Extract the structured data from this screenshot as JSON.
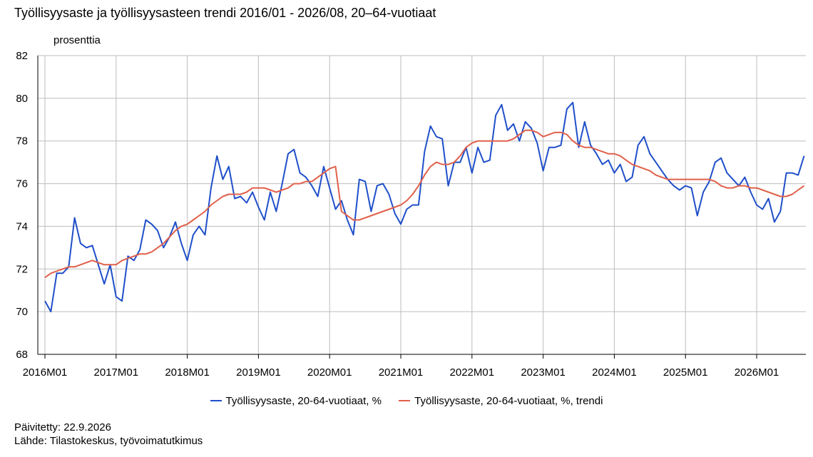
{
  "chart_data": {
    "type": "line",
    "title": "Työllisyysaste ja työllisyysasteen trendi 2016/01 - 2026/08, 20–64-vuotiaat",
    "ylabel": "prosenttia",
    "xlabel": "",
    "ylim": [
      68,
      82
    ],
    "yticks": [
      68,
      70,
      72,
      74,
      76,
      78,
      80,
      82
    ],
    "xticks": [
      "2016M01",
      "2017M01",
      "2018M01",
      "2019M01",
      "2020M01",
      "2021M01",
      "2022M01",
      "2023M01",
      "2024M01",
      "2025M01",
      "2026M01"
    ],
    "grid": true,
    "legend_position": "bottom",
    "x_start": "2016M01",
    "x_end": "2026M08",
    "series": [
      {
        "name": "Työllisyysaste, 20-64-vuotiaat, %",
        "color": "#1f4fc9",
        "values": [
          70.5,
          70.0,
          71.8,
          71.8,
          72.1,
          74.4,
          73.2,
          73.0,
          73.1,
          72.2,
          71.3,
          72.2,
          70.7,
          70.5,
          72.6,
          72.4,
          72.9,
          74.3,
          74.1,
          73.8,
          73.0,
          73.5,
          74.2,
          73.2,
          72.4,
          73.6,
          74.0,
          73.6,
          75.8,
          77.3,
          76.2,
          76.8,
          75.3,
          75.4,
          75.1,
          75.6,
          74.9,
          74.3,
          75.6,
          74.7,
          76.0,
          77.4,
          77.6,
          76.5,
          76.3,
          75.9,
          75.4,
          76.8,
          75.8,
          74.8,
          75.2,
          74.3,
          73.6,
          76.2,
          76.1,
          74.7,
          75.9,
          76.0,
          75.5,
          74.6,
          74.1,
          74.8,
          75.0,
          75.0,
          77.5,
          78.7,
          78.2,
          78.1,
          75.9,
          77.0,
          77.0,
          77.7,
          76.5,
          77.7,
          77.0,
          77.1,
          79.2,
          79.7,
          78.5,
          78.8,
          78.0,
          78.9,
          78.6,
          77.9,
          76.6,
          77.7,
          77.7,
          77.8,
          79.5,
          79.8,
          77.7,
          78.9,
          77.8,
          77.4,
          76.9,
          77.1,
          76.5,
          76.9,
          76.1,
          76.3,
          77.8,
          78.2,
          77.4,
          77.0,
          76.6,
          76.2,
          75.9,
          75.7,
          75.9,
          75.8,
          74.5,
          75.6,
          76.1,
          77.0,
          77.2,
          76.5,
          76.2,
          75.9,
          76.3,
          75.6,
          75.0,
          74.8,
          75.3,
          74.2,
          74.7,
          76.5,
          76.5,
          76.4,
          77.3
        ]
      },
      {
        "name": "Työllisyysaste, 20-64-vuotiaat, %, trendi",
        "color": "#e0604a",
        "values": [
          71.6,
          71.8,
          71.9,
          72.0,
          72.1,
          72.1,
          72.2,
          72.3,
          72.4,
          72.3,
          72.2,
          72.2,
          72.2,
          72.4,
          72.5,
          72.6,
          72.7,
          72.7,
          72.8,
          73.0,
          73.2,
          73.5,
          73.8,
          74.0,
          74.1,
          74.3,
          74.5,
          74.7,
          75.0,
          75.2,
          75.4,
          75.5,
          75.5,
          75.5,
          75.6,
          75.8,
          75.8,
          75.8,
          75.7,
          75.6,
          75.7,
          75.8,
          76.0,
          76.0,
          76.1,
          76.1,
          76.3,
          76.5,
          76.7,
          76.8,
          74.7,
          74.5,
          74.3,
          74.3,
          74.4,
          74.5,
          74.6,
          74.7,
          74.8,
          74.9,
          75.0,
          75.2,
          75.5,
          75.9,
          76.4,
          76.8,
          77.0,
          76.9,
          76.9,
          77.0,
          77.3,
          77.7,
          77.9,
          78.0,
          78.0,
          78.0,
          78.0,
          78.0,
          78.0,
          78.1,
          78.3,
          78.5,
          78.5,
          78.4,
          78.2,
          78.3,
          78.4,
          78.4,
          78.3,
          78.0,
          77.8,
          77.7,
          77.7,
          77.6,
          77.5,
          77.4,
          77.4,
          77.3,
          77.1,
          76.9,
          76.8,
          76.7,
          76.6,
          76.4,
          76.3,
          76.2,
          76.2,
          76.2,
          76.2,
          76.2,
          76.2,
          76.2,
          76.2,
          76.1,
          75.9,
          75.8,
          75.8,
          75.9,
          75.9,
          75.8,
          75.8,
          75.7,
          75.6,
          75.5,
          75.4,
          75.4,
          75.5,
          75.7,
          75.9
        ]
      }
    ]
  },
  "footer": {
    "updated": "Päivitetty: 22.9.2026",
    "source": "Lähde: Tilastokeskus, työvoimatutkimus"
  }
}
